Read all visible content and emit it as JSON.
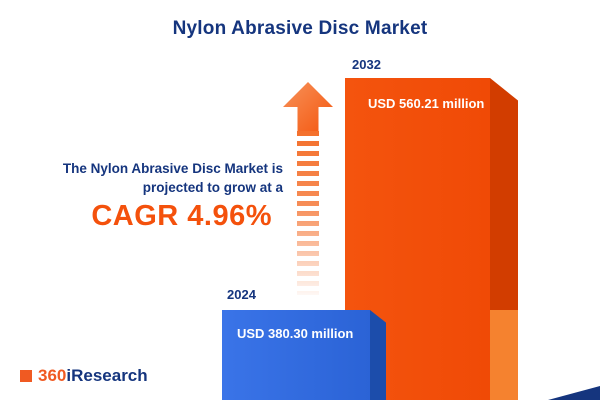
{
  "title": "Nylon Abrasive Disc Market",
  "description": {
    "line1": "The Nylon Abrasive Disc Market is",
    "line2": "projected to grow at a",
    "cagr": "CAGR 4.96%"
  },
  "chart_data": {
    "type": "bar",
    "title": "Nylon Abrasive Disc Market",
    "categories": [
      "2024",
      "2032"
    ],
    "values": [
      380.3,
      560.21
    ],
    "unit": "USD million",
    "value_labels": [
      "USD 380.30 million",
      "USD 560.21 million"
    ],
    "growth_rate": "4.96%",
    "cagr_text": "CAGR 4.96%",
    "bar_colors": [
      "#2f6be0",
      "#f4510c"
    ],
    "legend": "none",
    "axes": "none",
    "annotation": "orange upward growth arrow with fading dashed tail between text and bars"
  },
  "logo": {
    "prefix": "360",
    "suffix": "iResearch"
  },
  "colors": {
    "navy": "#15357e",
    "orange": "#f4510c",
    "blue": "#2f6be0"
  }
}
